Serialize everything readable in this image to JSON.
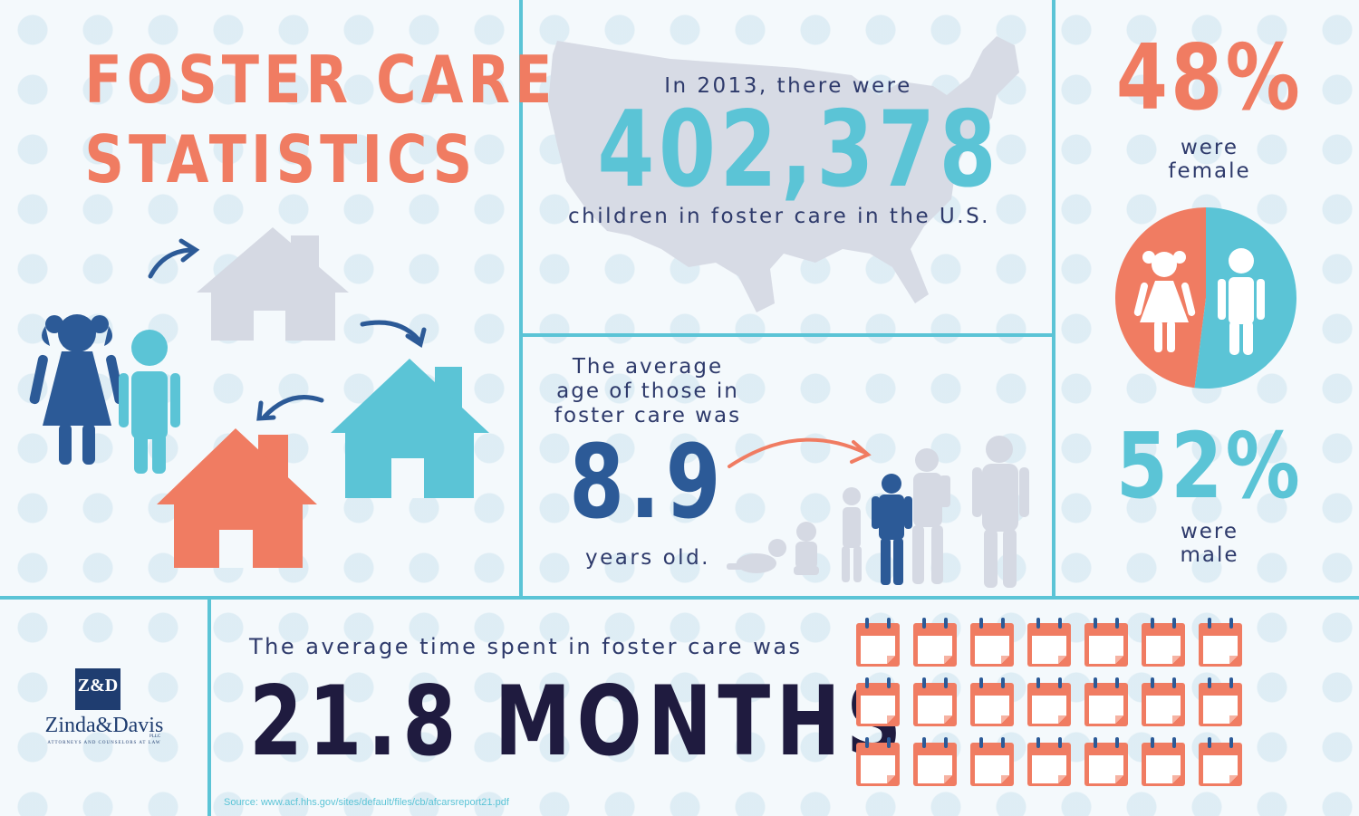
{
  "title": {
    "line1": "FOSTER CARE",
    "line2": "STATISTICS"
  },
  "total": {
    "pre": "In 2013, there were",
    "number": "402,378",
    "post": "children in foster care in the U.S."
  },
  "age": {
    "intro": "The average\nage of those in\nfoster care was",
    "value": "8.9",
    "unit": "years old."
  },
  "gender": {
    "female_pct": "48%",
    "female_label": "were\nfemale",
    "male_pct": "52%",
    "male_label": "were\nmale",
    "female_share": 0.48,
    "male_share": 0.52
  },
  "time": {
    "pre": "The average time spent in foster care was",
    "big": "21.8 MONTHS",
    "calendars_shown": 21.8
  },
  "logo": {
    "mark": "Z&D",
    "name": "Zinda&Davis",
    "llc": "PLLC",
    "tagline": "ATTORNEYS AND COUNSELORS AT LAW"
  },
  "source": "Source: www.acf.hhs.gov/sites/default/files/cb/afcarsreport21.pdf",
  "colors": {
    "coral": "#f07c62",
    "teal": "#5bc4d6",
    "navy": "#2c5a97",
    "dark": "#1f1b3f",
    "grey": "#d5d9e3"
  }
}
